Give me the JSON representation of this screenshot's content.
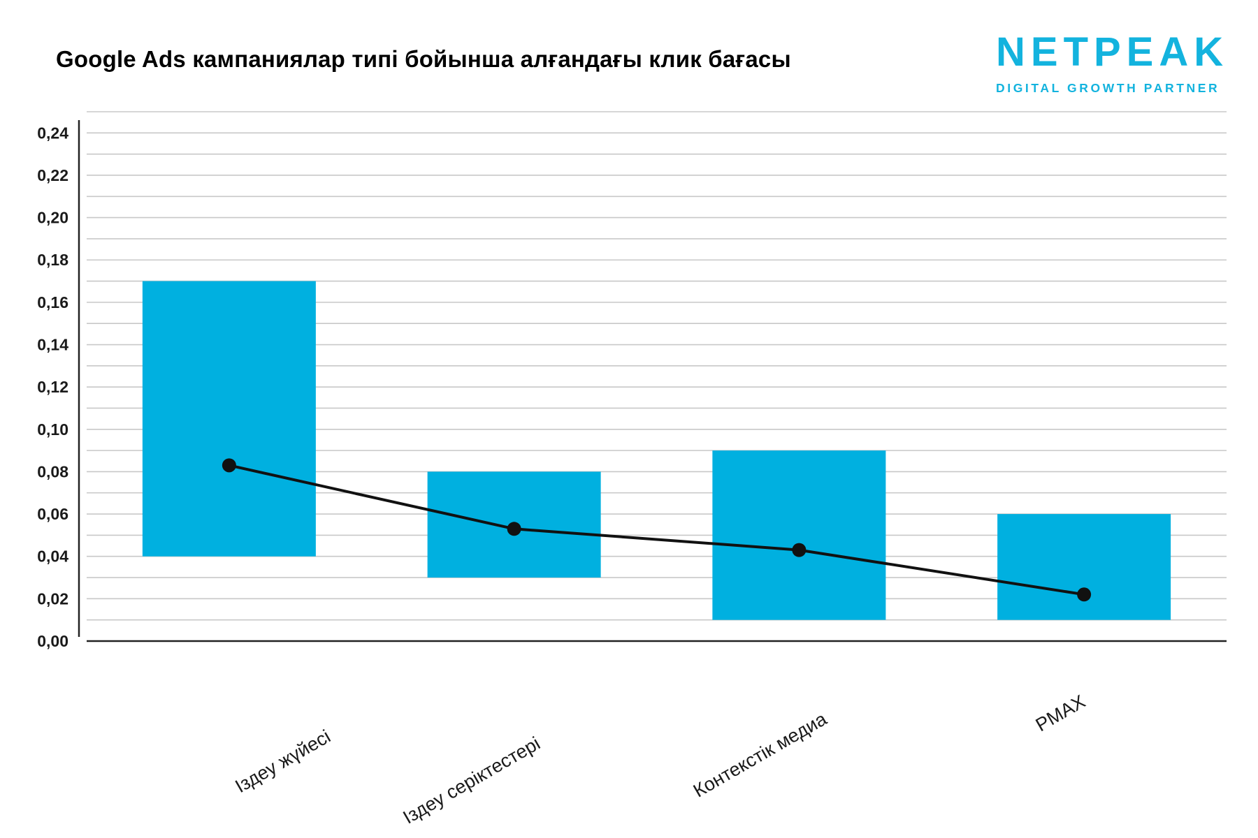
{
  "header": {
    "title": "Google Ads кампаниялар типі бойынша алғандағы клик бағасы",
    "logo_word": "NETPEAK",
    "logo_tagline": "DIGITAL GROWTH PARTNER"
  },
  "colors": {
    "bar": "#00b0e0",
    "line": "#111111",
    "grid": "#c8c8c8",
    "axis": "#222222",
    "brand": "#13b3de"
  },
  "chart_data": {
    "type": "bar",
    "categories": [
      "Іздеу жүйесі",
      "Іздеу серіктестері",
      "Контекстік медиа",
      "PMAX"
    ],
    "series": [
      {
        "type": "range-bar",
        "low": [
          0.04,
          0.03,
          0.01,
          0.01
        ],
        "high": [
          0.17,
          0.08,
          0.09,
          0.06
        ]
      },
      {
        "type": "line",
        "values": [
          0.083,
          0.053,
          0.043,
          0.022
        ]
      }
    ],
    "y_ticks": [
      "0,00",
      "0,02",
      "0,04",
      "0,06",
      "0,08",
      "0,10",
      "0,12",
      "0,14",
      "0,16",
      "0,18",
      "0,20",
      "0,22",
      "0,24"
    ],
    "ylim": [
      0,
      0.25
    ],
    "grid": true,
    "title": "Google Ads кампаниялар типі бойынша алғандағы клик бағасы",
    "xlabel": "",
    "ylabel": ""
  }
}
